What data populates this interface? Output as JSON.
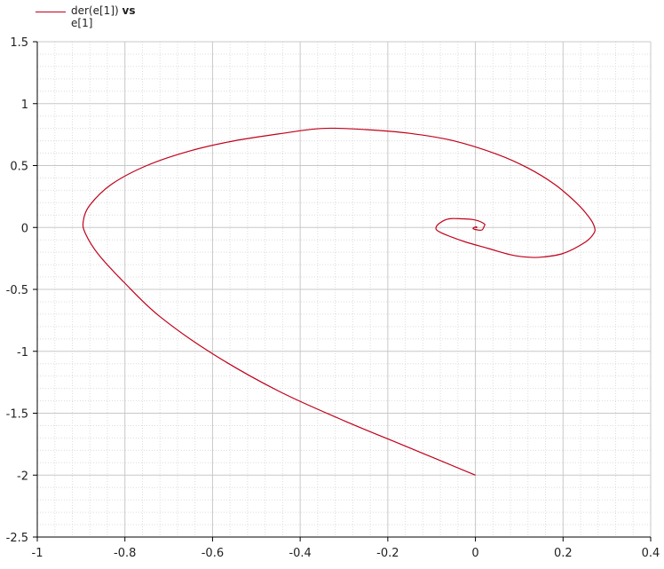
{
  "legend": {
    "series_name": "der(e[1])",
    "vs_word": "vs",
    "x_variable": "e[1]"
  },
  "colors": {
    "series": "#c0001a",
    "grid_major": "#c8c8c8",
    "grid_minor": "#dcdcdc",
    "axis": "#000000"
  },
  "chart_data": {
    "type": "line",
    "xlim": [
      -1,
      0.4
    ],
    "ylim": [
      -2.5,
      1.5
    ],
    "x_ticks": [
      "-1",
      "-0.8",
      "-0.6",
      "-0.4",
      "-0.2",
      "0",
      "0.2",
      "0.4"
    ],
    "x_tick_values": [
      -1,
      -0.8,
      -0.6,
      -0.4,
      -0.2,
      0,
      0.2,
      0.4
    ],
    "y_ticks": [
      "1.5",
      "1",
      "0.5",
      "0",
      "-0.5",
      "-1",
      "-1.5",
      "-2",
      "-2.5"
    ],
    "y_tick_values": [
      1.5,
      1,
      0.5,
      0,
      -0.5,
      -1,
      -1.5,
      -2,
      -2.5
    ],
    "grid": true,
    "legend_position": "top-left",
    "series": [
      {
        "name": "der(e[1]) vs e[1]",
        "x": [
          0,
          -0.15,
          -0.3,
          -0.45,
          -0.6,
          -0.72,
          -0.8,
          -0.86,
          -0.89,
          -0.895,
          -0.88,
          -0.83,
          -0.75,
          -0.65,
          -0.55,
          -0.45,
          -0.35,
          -0.25,
          -0.15,
          -0.05,
          0.05,
          0.12,
          0.18,
          0.23,
          0.26,
          0.272,
          0.27,
          0.25,
          0.2,
          0.15,
          0.12,
          0.08,
          0.03,
          -0.02,
          -0.06,
          -0.085,
          -0.09,
          -0.08,
          -0.06,
          -0.03,
          0,
          0.02,
          0.02,
          0.015,
          0.005,
          -0.005,
          -0.003,
          0.002,
          0.003,
          0
        ],
        "y": [
          -2,
          -1.78,
          -1.56,
          -1.32,
          -1.02,
          -0.72,
          -0.45,
          -0.22,
          -0.05,
          0.05,
          0.18,
          0.35,
          0.5,
          0.62,
          0.7,
          0.755,
          0.8,
          0.79,
          0.76,
          0.7,
          0.59,
          0.48,
          0.35,
          0.2,
          0.08,
          0,
          -0.05,
          -0.12,
          -0.21,
          -0.24,
          -0.24,
          -0.22,
          -0.17,
          -0.12,
          -0.07,
          -0.03,
          0,
          0.04,
          0.07,
          0.07,
          0.06,
          0.03,
          0.01,
          -0.02,
          -0.02,
          -0.01,
          0,
          0.005,
          0,
          0
        ]
      }
    ]
  }
}
